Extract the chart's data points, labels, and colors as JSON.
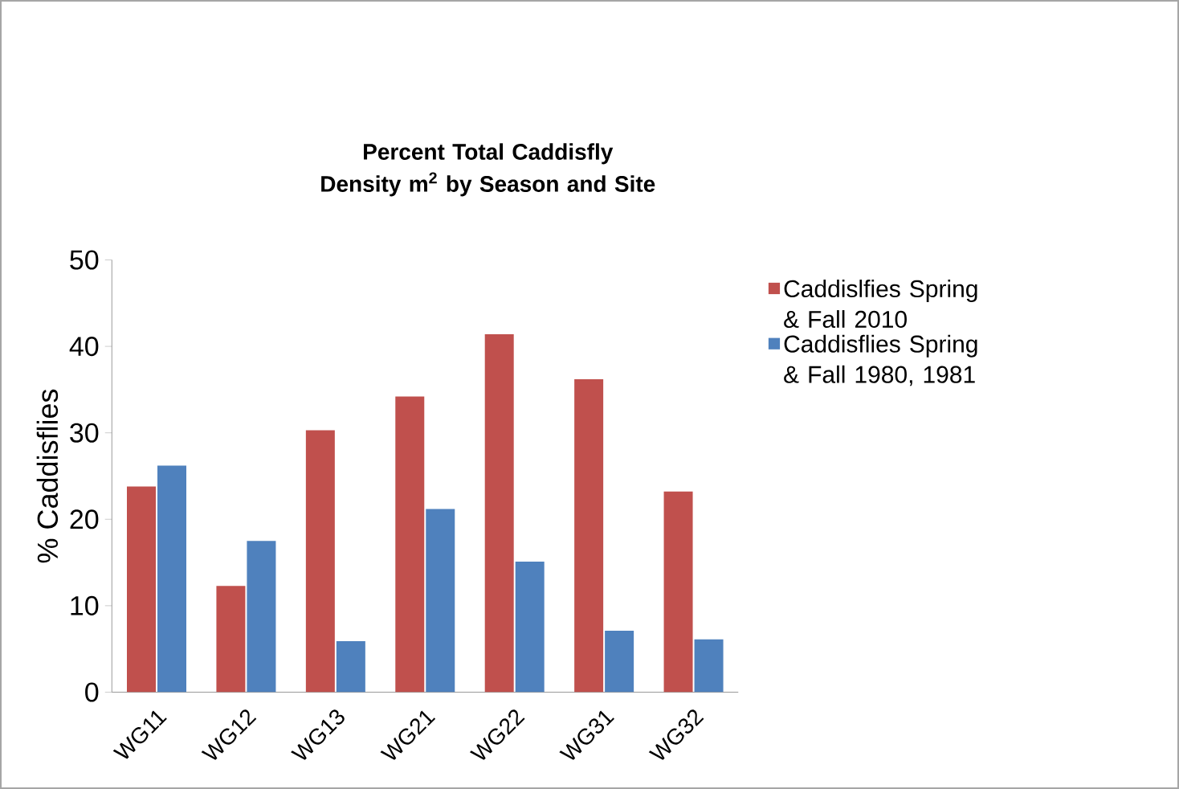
{
  "chart_data": {
    "type": "bar",
    "title": "Percent Total Caddisfly Density m$^{2}$ by Season and Site",
    "ylabel": "% Caddisflies",
    "categories": [
      "WG11",
      "WG12",
      "WG13",
      "WG21",
      "WG22",
      "WG31",
      "WG32"
    ],
    "series": [
      {
        "name": "Caddislfies Spring & Fall 2010",
        "color": "#c0504d",
        "values": [
          23.8,
          12.3,
          30.3,
          34.2,
          41.4,
          36.2,
          23.2
        ]
      },
      {
        "name": "Caddisflies Spring & Fall 1980, 1981",
        "color": "#4f81bd",
        "values": [
          26.2,
          17.5,
          5.9,
          21.2,
          15.1,
          7.1,
          6.1
        ]
      }
    ],
    "ylim": [
      0,
      50
    ],
    "yticks": [
      0,
      10,
      20,
      30,
      40,
      50
    ],
    "legend": "right"
  }
}
